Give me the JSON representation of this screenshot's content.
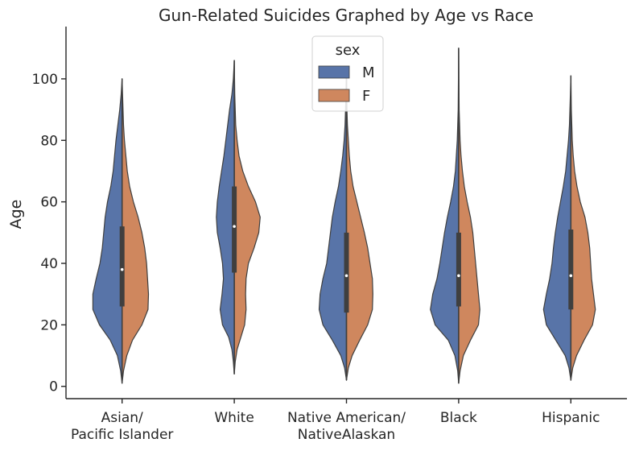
{
  "chart_data": {
    "type": "violin",
    "title": "Gun-Related Suicides Graphed by Age vs Race",
    "xlabel": "",
    "ylabel": "Age",
    "ylim": [
      -4,
      117
    ],
    "yticks": [
      0,
      20,
      40,
      60,
      80,
      100
    ],
    "categories": [
      [
        "Asian/",
        "Pacific Islander"
      ],
      [
        "White"
      ],
      [
        "Native American/",
        "NativeAlaskan"
      ],
      [
        "Black"
      ],
      [
        "Hispanic"
      ]
    ],
    "series": [
      {
        "name": "M",
        "color": "#5874a8"
      },
      {
        "name": "F",
        "color": "#cf875e"
      }
    ],
    "legend": {
      "title": "sex",
      "position": "top-center"
    },
    "violins": [
      {
        "min": 1,
        "max": 100,
        "q1": 26,
        "median": 38,
        "q3": 52,
        "M": [
          [
            1,
            0
          ],
          [
            5,
            0.03
          ],
          [
            10,
            0.1
          ],
          [
            15,
            0.25
          ],
          [
            20,
            0.48
          ],
          [
            25,
            0.62
          ],
          [
            30,
            0.62
          ],
          [
            35,
            0.55
          ],
          [
            40,
            0.47
          ],
          [
            45,
            0.42
          ],
          [
            50,
            0.39
          ],
          [
            55,
            0.36
          ],
          [
            60,
            0.31
          ],
          [
            65,
            0.24
          ],
          [
            70,
            0.19
          ],
          [
            75,
            0.16
          ],
          [
            80,
            0.13
          ],
          [
            85,
            0.09
          ],
          [
            90,
            0.05
          ],
          [
            95,
            0.02
          ],
          [
            100,
            0
          ]
        ],
        "F": [
          [
            1,
            0
          ],
          [
            5,
            0.03
          ],
          [
            10,
            0.1
          ],
          [
            15,
            0.22
          ],
          [
            20,
            0.42
          ],
          [
            25,
            0.55
          ],
          [
            30,
            0.56
          ],
          [
            35,
            0.54
          ],
          [
            40,
            0.52
          ],
          [
            45,
            0.48
          ],
          [
            50,
            0.42
          ],
          [
            55,
            0.34
          ],
          [
            60,
            0.24
          ],
          [
            65,
            0.16
          ],
          [
            70,
            0.11
          ],
          [
            75,
            0.08
          ],
          [
            80,
            0.05
          ],
          [
            85,
            0.03
          ],
          [
            90,
            0.02
          ],
          [
            95,
            0.01
          ],
          [
            100,
            0
          ]
        ]
      },
      {
        "min": 4,
        "max": 106,
        "q1": 37,
        "median": 52,
        "q3": 65,
        "M": [
          [
            4,
            0
          ],
          [
            8,
            0.02
          ],
          [
            12,
            0.05
          ],
          [
            16,
            0.12
          ],
          [
            20,
            0.25
          ],
          [
            25,
            0.3
          ],
          [
            30,
            0.26
          ],
          [
            35,
            0.23
          ],
          [
            40,
            0.25
          ],
          [
            45,
            0.3
          ],
          [
            50,
            0.36
          ],
          [
            55,
            0.38
          ],
          [
            60,
            0.36
          ],
          [
            65,
            0.32
          ],
          [
            70,
            0.27
          ],
          [
            75,
            0.22
          ],
          [
            80,
            0.18
          ],
          [
            85,
            0.14
          ],
          [
            90,
            0.1
          ],
          [
            95,
            0.05
          ],
          [
            100,
            0.02
          ],
          [
            106,
            0
          ]
        ],
        "F": [
          [
            4,
            0
          ],
          [
            8,
            0.02
          ],
          [
            12,
            0.06
          ],
          [
            16,
            0.14
          ],
          [
            20,
            0.22
          ],
          [
            25,
            0.25
          ],
          [
            30,
            0.24
          ],
          [
            35,
            0.25
          ],
          [
            40,
            0.3
          ],
          [
            45,
            0.42
          ],
          [
            50,
            0.52
          ],
          [
            55,
            0.55
          ],
          [
            60,
            0.45
          ],
          [
            65,
            0.3
          ],
          [
            70,
            0.18
          ],
          [
            75,
            0.1
          ],
          [
            80,
            0.06
          ],
          [
            85,
            0.03
          ],
          [
            90,
            0.02
          ],
          [
            95,
            0.01
          ],
          [
            106,
            0
          ]
        ]
      },
      {
        "min": 2,
        "max": 104,
        "q1": 24,
        "median": 36,
        "q3": 50,
        "M": [
          [
            2,
            0
          ],
          [
            6,
            0.04
          ],
          [
            10,
            0.12
          ],
          [
            15,
            0.3
          ],
          [
            20,
            0.5
          ],
          [
            25,
            0.58
          ],
          [
            30,
            0.56
          ],
          [
            35,
            0.5
          ],
          [
            40,
            0.42
          ],
          [
            45,
            0.38
          ],
          [
            50,
            0.34
          ],
          [
            55,
            0.3
          ],
          [
            60,
            0.24
          ],
          [
            65,
            0.17
          ],
          [
            70,
            0.12
          ],
          [
            75,
            0.08
          ],
          [
            80,
            0.05
          ],
          [
            85,
            0.03
          ],
          [
            90,
            0.02
          ],
          [
            95,
            0.01
          ],
          [
            104,
            0
          ]
        ],
        "F": [
          [
            2,
            0
          ],
          [
            6,
            0.04
          ],
          [
            10,
            0.12
          ],
          [
            15,
            0.28
          ],
          [
            20,
            0.45
          ],
          [
            25,
            0.55
          ],
          [
            30,
            0.56
          ],
          [
            35,
            0.55
          ],
          [
            40,
            0.5
          ],
          [
            45,
            0.45
          ],
          [
            50,
            0.38
          ],
          [
            55,
            0.3
          ],
          [
            60,
            0.22
          ],
          [
            65,
            0.14
          ],
          [
            70,
            0.09
          ],
          [
            75,
            0.06
          ],
          [
            80,
            0.04
          ],
          [
            85,
            0.02
          ],
          [
            90,
            0.01
          ],
          [
            95,
            0.005
          ],
          [
            104,
            0
          ]
        ]
      },
      {
        "min": 1,
        "max": 110,
        "q1": 26,
        "median": 36,
        "q3": 50,
        "M": [
          [
            1,
            0
          ],
          [
            5,
            0.02
          ],
          [
            10,
            0.08
          ],
          [
            15,
            0.22
          ],
          [
            20,
            0.5
          ],
          [
            25,
            0.6
          ],
          [
            30,
            0.55
          ],
          [
            35,
            0.46
          ],
          [
            40,
            0.4
          ],
          [
            45,
            0.35
          ],
          [
            50,
            0.3
          ],
          [
            55,
            0.24
          ],
          [
            60,
            0.17
          ],
          [
            65,
            0.11
          ],
          [
            70,
            0.07
          ],
          [
            75,
            0.05
          ],
          [
            80,
            0.03
          ],
          [
            85,
            0.02
          ],
          [
            90,
            0.01
          ],
          [
            100,
            0.005
          ],
          [
            110,
            0
          ]
        ],
        "F": [
          [
            1,
            0
          ],
          [
            5,
            0.03
          ],
          [
            10,
            0.1
          ],
          [
            15,
            0.25
          ],
          [
            20,
            0.42
          ],
          [
            25,
            0.45
          ],
          [
            30,
            0.42
          ],
          [
            35,
            0.39
          ],
          [
            40,
            0.36
          ],
          [
            45,
            0.33
          ],
          [
            50,
            0.3
          ],
          [
            55,
            0.25
          ],
          [
            60,
            0.18
          ],
          [
            65,
            0.12
          ],
          [
            70,
            0.08
          ],
          [
            75,
            0.05
          ],
          [
            80,
            0.03
          ],
          [
            85,
            0.02
          ],
          [
            90,
            0.01
          ],
          [
            100,
            0.005
          ],
          [
            110,
            0
          ]
        ]
      },
      {
        "min": 2,
        "max": 101,
        "q1": 25,
        "median": 36,
        "q3": 51,
        "M": [
          [
            2,
            0
          ],
          [
            6,
            0.04
          ],
          [
            10,
            0.12
          ],
          [
            15,
            0.32
          ],
          [
            20,
            0.52
          ],
          [
            25,
            0.58
          ],
          [
            30,
            0.52
          ],
          [
            35,
            0.45
          ],
          [
            40,
            0.4
          ],
          [
            45,
            0.37
          ],
          [
            50,
            0.33
          ],
          [
            55,
            0.28
          ],
          [
            60,
            0.22
          ],
          [
            65,
            0.16
          ],
          [
            70,
            0.11
          ],
          [
            75,
            0.08
          ],
          [
            80,
            0.05
          ],
          [
            85,
            0.03
          ],
          [
            90,
            0.02
          ],
          [
            95,
            0.01
          ],
          [
            101,
            0
          ]
        ],
        "F": [
          [
            2,
            0
          ],
          [
            6,
            0.04
          ],
          [
            10,
            0.12
          ],
          [
            15,
            0.28
          ],
          [
            20,
            0.46
          ],
          [
            25,
            0.52
          ],
          [
            30,
            0.48
          ],
          [
            35,
            0.44
          ],
          [
            40,
            0.42
          ],
          [
            45,
            0.4
          ],
          [
            50,
            0.36
          ],
          [
            55,
            0.3
          ],
          [
            60,
            0.2
          ],
          [
            65,
            0.13
          ],
          [
            70,
            0.08
          ],
          [
            75,
            0.05
          ],
          [
            80,
            0.03
          ],
          [
            85,
            0.02
          ],
          [
            90,
            0.01
          ],
          [
            95,
            0.005
          ],
          [
            101,
            0
          ]
        ]
      }
    ]
  }
}
